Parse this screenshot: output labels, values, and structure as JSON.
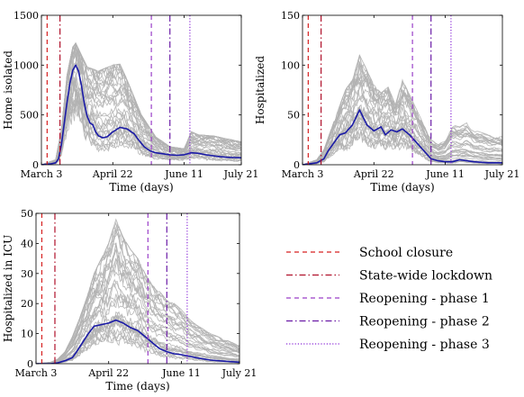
{
  "chart_data": [
    {
      "type": "line",
      "ylabel": "Home isolated",
      "xlabel": "Time (days)",
      "ylim": [
        0,
        1500
      ],
      "yticks": [
        0,
        500,
        1000,
        1500
      ],
      "xticks": [
        "March 3",
        "April 22",
        "June 11",
        "July 21"
      ],
      "x_days": {
        "start": 0,
        "end": 140,
        "tick_days": [
          0,
          50,
          100,
          140
        ]
      },
      "series": [
        {
          "role": "mean",
          "color": "#1a1aa6",
          "x": [
            0,
            7,
            10,
            12,
            14,
            16,
            18,
            20,
            22,
            24,
            26,
            28,
            30,
            32,
            34,
            36,
            38,
            40,
            43,
            46,
            50,
            55,
            60,
            65,
            68,
            72,
            76,
            80,
            85,
            90,
            95,
            100,
            105,
            110,
            115,
            120,
            125,
            130,
            135,
            140
          ],
          "y": [
            0,
            10,
            20,
            60,
            200,
            420,
            630,
            820,
            950,
            1000,
            940,
            800,
            620,
            490,
            420,
            400,
            330,
            290,
            270,
            280,
            330,
            375,
            360,
            310,
            250,
            180,
            140,
            120,
            110,
            100,
            95,
            100,
            120,
            115,
            100,
            90,
            80,
            75,
            72,
            70
          ]
        },
        {
          "role": "sample-envelope",
          "color": "#b2b2b2",
          "x": [
            0,
            10,
            14,
            18,
            22,
            24,
            28,
            32,
            40,
            50,
            55,
            60,
            70,
            80,
            90,
            100,
            105,
            110,
            120,
            130,
            140
          ],
          "y": [
            0,
            50,
            350,
            900,
            1180,
            1220,
            1100,
            980,
            940,
            1000,
            1010,
            850,
            500,
            280,
            180,
            160,
            330,
            300,
            290,
            260,
            230
          ]
        }
      ]
    },
    {
      "type": "line",
      "ylabel": "Hospitalized",
      "xlabel": "Time (days)",
      "ylim": [
        0,
        150
      ],
      "yticks": [
        0,
        50,
        100,
        150
      ],
      "xticks": [
        "March 3",
        "April 22",
        "June 11",
        "July 21"
      ],
      "x_days": {
        "start": 0,
        "end": 140,
        "tick_days": [
          0,
          50,
          100,
          140
        ]
      },
      "series": [
        {
          "role": "mean",
          "color": "#1a1aa6",
          "x": [
            0,
            10,
            15,
            18,
            22,
            26,
            30,
            35,
            40,
            45,
            50,
            55,
            58,
            62,
            66,
            70,
            75,
            80,
            85,
            90,
            95,
            100,
            105,
            110,
            115,
            120,
            130,
            140
          ],
          "y": [
            0,
            2,
            6,
            14,
            22,
            30,
            32,
            40,
            55,
            40,
            34,
            38,
            30,
            35,
            33,
            36,
            30,
            22,
            14,
            6,
            4,
            3,
            3,
            5,
            4,
            3,
            2,
            2
          ]
        },
        {
          "role": "sample-envelope",
          "color": "#b2b2b2",
          "x": [
            0,
            10,
            15,
            20,
            25,
            30,
            35,
            40,
            45,
            50,
            55,
            60,
            65,
            70,
            75,
            80,
            85,
            90,
            95,
            100,
            105,
            110,
            115,
            120,
            130,
            140
          ],
          "y": [
            0,
            5,
            15,
            35,
            55,
            75,
            85,
            110,
            95,
            80,
            72,
            78,
            60,
            85,
            70,
            55,
            40,
            25,
            20,
            25,
            40,
            38,
            42,
            35,
            30,
            28
          ]
        }
      ]
    },
    {
      "type": "line",
      "ylabel": "Hospitalized in ICU",
      "xlabel": "Time (days)",
      "ylim": [
        0,
        50
      ],
      "yticks": [
        0,
        10,
        20,
        30,
        40,
        50
      ],
      "xticks": [
        "March 3",
        "April 22",
        "June 11",
        "July 21"
      ],
      "x_days": {
        "start": 0,
        "end": 140,
        "tick_days": [
          0,
          50,
          100,
          140
        ]
      },
      "series": [
        {
          "role": "mean",
          "color": "#1a1aa6",
          "x": [
            0,
            10,
            15,
            20,
            25,
            28,
            32,
            36,
            40,
            45,
            50,
            55,
            60,
            65,
            70,
            75,
            80,
            85,
            90,
            95,
            100,
            105,
            110,
            120,
            130,
            140
          ],
          "y": [
            0,
            0,
            0.3,
            1,
            2,
            4,
            7,
            10,
            12.5,
            13,
            13.5,
            14.5,
            13.5,
            12,
            11,
            9,
            7,
            5,
            4,
            3.3,
            3,
            2.5,
            2,
            1.2,
            0.8,
            0.5
          ]
        },
        {
          "role": "sample-envelope",
          "color": "#b2b2b2",
          "x": [
            0,
            10,
            15,
            20,
            25,
            30,
            35,
            40,
            45,
            50,
            55,
            60,
            65,
            70,
            75,
            80,
            85,
            90,
            95,
            100,
            105,
            110,
            120,
            130,
            140
          ],
          "y": [
            0,
            0.5,
            1.5,
            4,
            9,
            15,
            22,
            30,
            35,
            40,
            48,
            42,
            38,
            35,
            30,
            26,
            24,
            21,
            20,
            18,
            15,
            13,
            10,
            8,
            6
          ]
        }
      ]
    }
  ],
  "events": [
    {
      "label": "School closure",
      "day": 4,
      "color": "#d62020",
      "style": "dashed"
    },
    {
      "label": "State-wide lockdown",
      "day": 13,
      "color": "#b0102a",
      "style": "dashdot"
    },
    {
      "label": "Reopening - phase 1",
      "day": 77,
      "color": "#9a3fc8",
      "style": "dashed"
    },
    {
      "label": "Reopening - phase 2",
      "day": 90,
      "color": "#6a1aa6",
      "style": "dashdot"
    },
    {
      "label": "Reopening - phase 3",
      "day": 104,
      "color": "#8a2ad8",
      "style": "dotted"
    }
  ],
  "colors": {
    "samples": "#b2b2b2",
    "mean": "#1a1aa6",
    "axis": "#000000"
  }
}
